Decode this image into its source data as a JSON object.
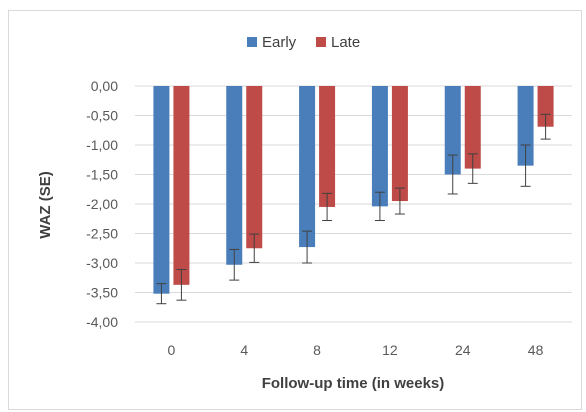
{
  "chart_data": {
    "type": "bar",
    "xlabel": "Follow-up time (in weeks)",
    "ylabel": "WAZ (SE)",
    "categories": [
      "0",
      "4",
      "8",
      "12",
      "24",
      "48"
    ],
    "ylim": [
      -4.0,
      0.0
    ],
    "yticks": [
      "0,00",
      "-0,50",
      "-1,00",
      "-1,50",
      "-2,00",
      "-2,50",
      "-3,00",
      "-3,50",
      "-4,00"
    ],
    "grid": true,
    "legend_position": "top",
    "series": [
      {
        "name": "Early",
        "color": "#4a7ebb",
        "values": [
          -3.52,
          -3.03,
          -2.73,
          -2.04,
          -1.5,
          -1.35
        ],
        "error": [
          0.17,
          0.26,
          0.27,
          0.24,
          0.33,
          0.35
        ]
      },
      {
        "name": "Late",
        "color": "#be4b48",
        "values": [
          -3.37,
          -2.75,
          -2.05,
          -1.95,
          -1.4,
          -0.69
        ],
        "error": [
          0.26,
          0.24,
          0.23,
          0.22,
          0.25,
          0.21
        ]
      }
    ]
  }
}
